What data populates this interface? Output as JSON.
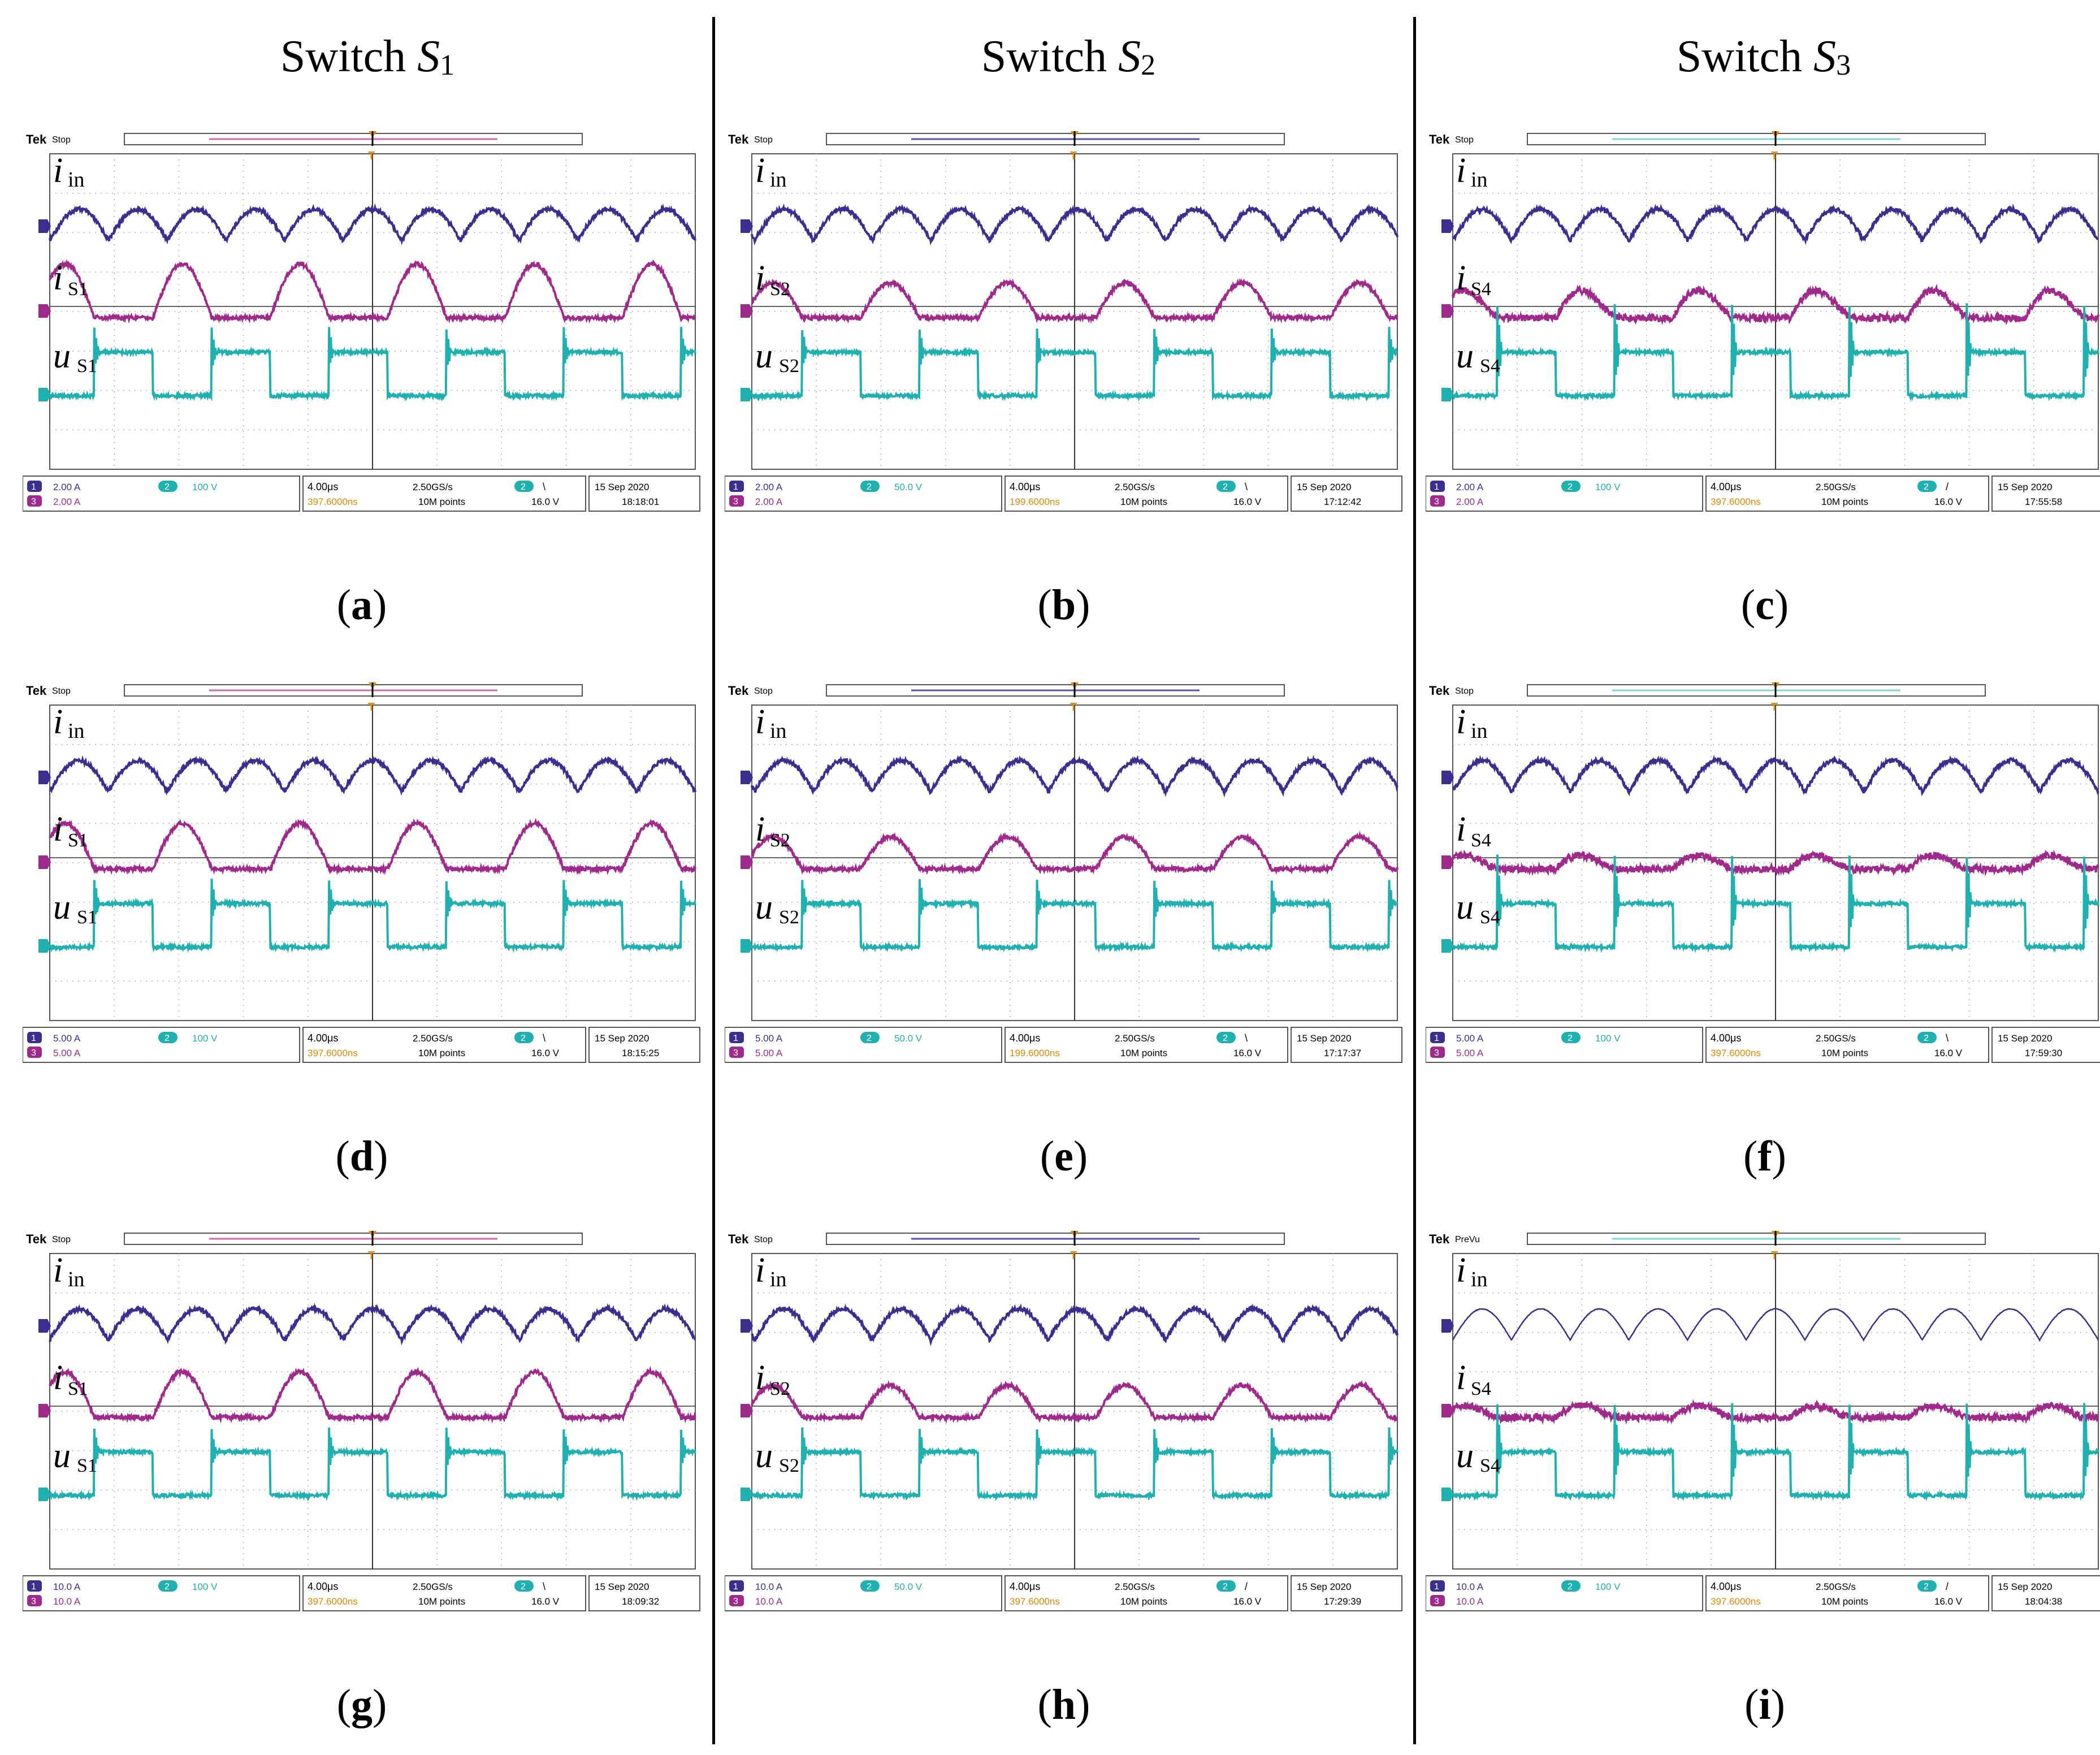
{
  "columns": [
    {
      "title_prefix": "Switch ",
      "title_symbol": "S",
      "title_sub": "1"
    },
    {
      "title_prefix": "Switch ",
      "title_symbol": "S",
      "title_sub": "2"
    },
    {
      "title_prefix": "Switch ",
      "title_symbol": "S",
      "title_sub": "3"
    }
  ],
  "colors": {
    "ch1": "#3a2f8f",
    "ch3": "#a02a8c",
    "ch2": "#1fb0b0",
    "grid": "#b0b0b0",
    "orange": "#e08a00"
  },
  "chart_data": [
    {
      "type": "line",
      "id": "a",
      "caption": "a",
      "mode": "Stop",
      "label_i": "in",
      "label_i2": "S1",
      "label_u": "S1",
      "ch1_scale": "2.00 A",
      "ch3_scale": "2.00 A",
      "ch2_scale": "100 V",
      "time_div": "4.00μs",
      "trigger": "397.6000ns",
      "rate": "2.50GS/s",
      "points": "10M points",
      "slope": "\\",
      "trig_v": "16.0 V",
      "date": "15 Sep 2020",
      "time": "18:18:01",
      "amp_i2": 1.0,
      "shape": 1
    },
    {
      "type": "line",
      "id": "b",
      "caption": "b",
      "mode": "Stop",
      "label_i": "in",
      "label_i2": "S2",
      "label_u": "S2",
      "ch1_scale": "2.00 A",
      "ch3_scale": "2.00 A",
      "ch2_scale": "50.0 V",
      "time_div": "4.00μs",
      "trigger": "199.6000ns",
      "rate": "2.50GS/s",
      "points": "10M points",
      "slope": "\\",
      "trig_v": "16.0 V",
      "date": "15 Sep 2020",
      "time": "17:12:42",
      "amp_i2": 0.65,
      "shape": 2
    },
    {
      "type": "line",
      "id": "c",
      "caption": "c",
      "mode": "Stop",
      "label_i": "in",
      "label_i2": "S4",
      "label_u": "S4",
      "ch1_scale": "2.00 A",
      "ch3_scale": "2.00 A",
      "ch2_scale": "100 V",
      "time_div": "4.00μs",
      "trigger": "397.6000ns",
      "rate": "2.50GS/s",
      "points": "10M points",
      "slope": "/",
      "trig_v": "16.0 V",
      "date": "15 Sep 2020",
      "time": "17:55:58",
      "amp_i2": 0.7,
      "shape": 3
    },
    {
      "type": "line",
      "id": "d",
      "caption": "d",
      "mode": "Stop",
      "label_i": "in",
      "label_i2": "S1",
      "label_u": "S1",
      "ch1_scale": "5.00 A",
      "ch3_scale": "5.00 A",
      "ch2_scale": "100 V",
      "time_div": "4.00μs",
      "trigger": "397.6000ns",
      "rate": "2.50GS/s",
      "points": "10M points",
      "slope": "\\",
      "trig_v": "16.0 V",
      "date": "15 Sep 2020",
      "time": "18:15:25",
      "amp_i2": 0.85,
      "shape": 1
    },
    {
      "type": "line",
      "id": "e",
      "caption": "e",
      "mode": "Stop",
      "label_i": "in",
      "label_i2": "S2",
      "label_u": "S2",
      "ch1_scale": "5.00 A",
      "ch3_scale": "5.00 A",
      "ch2_scale": "50.0 V",
      "time_div": "4.00μs",
      "trigger": "199.6000ns",
      "rate": "2.50GS/s",
      "points": "10M points",
      "slope": "\\",
      "trig_v": "16.0 V",
      "date": "15 Sep 2020",
      "time": "17:17:37",
      "amp_i2": 0.6,
      "shape": 2
    },
    {
      "type": "line",
      "id": "f",
      "caption": "f",
      "mode": "Stop",
      "label_i": "in",
      "label_i2": "S4",
      "label_u": "S4",
      "ch1_scale": "5.00 A",
      "ch3_scale": "5.00 A",
      "ch2_scale": "100 V",
      "time_div": "4.00μs",
      "trigger": "397.6000ns",
      "rate": "2.50GS/s",
      "points": "10M points",
      "slope": "\\",
      "trig_v": "16.0 V",
      "date": "15 Sep 2020",
      "time": "17:59:30",
      "amp_i2": 0.35,
      "shape": 3
    },
    {
      "type": "line",
      "id": "g",
      "caption": "g",
      "mode": "Stop",
      "label_i": "in",
      "label_i2": "S1",
      "label_u": "S1",
      "ch1_scale": "10.0 A",
      "ch3_scale": "10.0 A",
      "ch2_scale": "100 V",
      "time_div": "4.00μs",
      "trigger": "397.6000ns",
      "rate": "2.50GS/s",
      "points": "10M points",
      "slope": "\\",
      "trig_v": "16.0 V",
      "date": "15 Sep 2020",
      "time": "18:09:32",
      "amp_i2": 0.85,
      "shape": 1
    },
    {
      "type": "line",
      "id": "h",
      "caption": "h",
      "mode": "Stop",
      "label_i": "in",
      "label_i2": "S2",
      "label_u": "S2",
      "ch1_scale": "10.0 A",
      "ch3_scale": "10.0 A",
      "ch2_scale": "50.0 V",
      "time_div": "4.00μs",
      "trigger": "397.6000ns",
      "rate": "2.50GS/s",
      "points": "10M points",
      "slope": "/",
      "trig_v": "16.0 V",
      "date": "15 Sep 2020",
      "time": "17:29:39",
      "amp_i2": 0.6,
      "shape": 2
    },
    {
      "type": "line",
      "id": "i",
      "caption": "i",
      "mode": "PreVu",
      "label_i": "in",
      "label_i2": "S4",
      "label_u": "S4",
      "ch1_scale": "10.0 A",
      "ch3_scale": "10.0 A",
      "ch2_scale": "100 V",
      "time_div": "4.00μs",
      "trigger": "397.6000ns",
      "rate": "2.50GS/s",
      "points": "10M points",
      "slope": "/",
      "trig_v": "16.0 V",
      "date": "15 Sep 2020",
      "time": "18:04:38",
      "amp_i2": 0.3,
      "shape": 3
    }
  ],
  "labels": {
    "brand": "Tek",
    "i": "i",
    "u": "u",
    "ch1_num": "1",
    "ch2_num": "2",
    "ch3_num": "3",
    "trig_marker": "T"
  }
}
